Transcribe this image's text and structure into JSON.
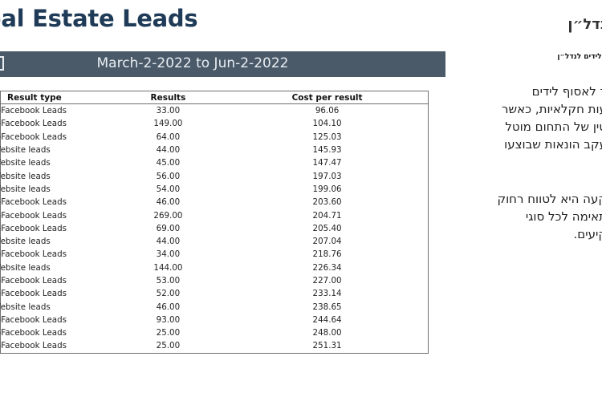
{
  "report": {
    "title": "eal Estate Leads",
    "date_range": "March-2-2022 to Jun-2-2022"
  },
  "table": {
    "headers": {
      "result_type": "Result type",
      "results": "Results",
      "cost_per_result": "Cost per result"
    },
    "rows": [
      {
        "type": "n-Facebook Leads",
        "results": "33.00",
        "cost": "96.06"
      },
      {
        "type": "n-Facebook Leads",
        "results": "149.00",
        "cost": "104.10"
      },
      {
        "type": "n-Facebook Leads",
        "results": "64.00",
        "cost": "125.03"
      },
      {
        "type": "Website leads",
        "results": "44.00",
        "cost": "145.93"
      },
      {
        "type": "Website leads",
        "results": "45.00",
        "cost": "147.47"
      },
      {
        "type": "Website leads",
        "results": "56.00",
        "cost": "197.03"
      },
      {
        "type": "Website leads",
        "results": "54.00",
        "cost": "199.06"
      },
      {
        "type": "n-Facebook Leads",
        "results": "46.00",
        "cost": "203.60"
      },
      {
        "type": "n-Facebook Leads",
        "results": "269.00",
        "cost": "204.71"
      },
      {
        "type": "n-Facebook Leads",
        "results": "69.00",
        "cost": "205.40"
      },
      {
        "type": "Website leads",
        "results": "44.00",
        "cost": "207.04"
      },
      {
        "type": "n-Facebook Leads",
        "results": "34.00",
        "cost": "218.76"
      },
      {
        "type": "Website leads",
        "results": "144.00",
        "cost": "226.34"
      },
      {
        "type": "n-Facebook Leads",
        "results": "53.00",
        "cost": "227.00"
      },
      {
        "type": "n-Facebook Leads",
        "results": "52.00",
        "cost": "233.14"
      },
      {
        "type": "Website leads",
        "results": "46.00",
        "cost": "238.65"
      },
      {
        "type": "n-Facebook Leads",
        "results": "93.00",
        "cost": "244.64"
      },
      {
        "type": "n-Facebook Leads",
        "results": "25.00",
        "cost": "248.00"
      },
      {
        "type": "n-Facebook Leads",
        "results": "25.00",
        "cost": "251.31"
      }
    ]
  },
  "side_panel": {
    "title": "נדל״ן",
    "subtitle": "סוף לידים לנדל״ן",
    "paragraph1": [
      "ר לאסוף לידים",
      "עות חקלאיות, כאשר",
      "טין של התחום מוטל",
      "עקב הונאות שבוצעו",
      "."
    ],
    "paragraph2": [
      "קעה היא לטווח רחוק",
      "תאימה לכל סוגי",
      "קיעים."
    ]
  },
  "colors": {
    "title": "#1f3b57",
    "banner_bg": "#4a5a69",
    "banner_text": "#e9eef3",
    "table_border": "#6f6f6f"
  }
}
